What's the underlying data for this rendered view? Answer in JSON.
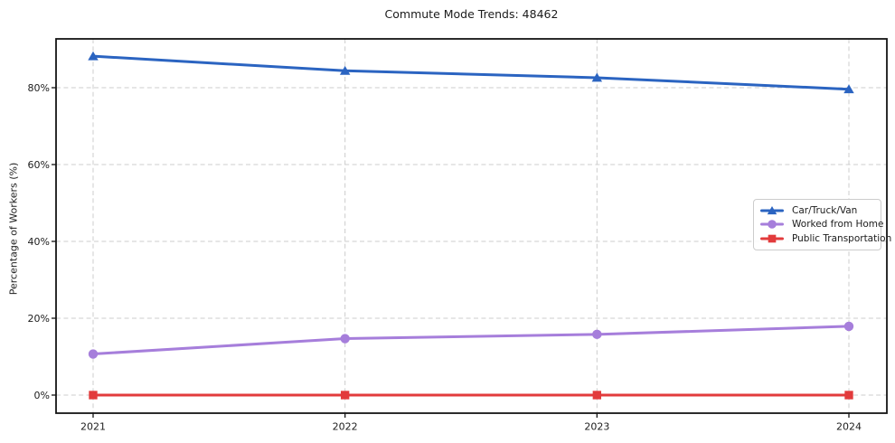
{
  "chart_data": {
    "type": "line",
    "title": "Commute Mode Trends: 48462",
    "xlabel": "",
    "ylabel": "Percentage of Workers (%)",
    "categories": [
      "2021",
      "2022",
      "2023",
      "2024"
    ],
    "series": [
      {
        "name": "Car/Truck/Van",
        "values": [
          88.2,
          84.4,
          82.6,
          79.6
        ],
        "color": "#2b64c1",
        "marker": "triangle"
      },
      {
        "name": "Worked from Home",
        "values": [
          10.7,
          14.7,
          15.8,
          17.9
        ],
        "color": "#a67edb",
        "marker": "circle"
      },
      {
        "name": "Public Transportation",
        "values": [
          0.0,
          0.0,
          0.0,
          0.0
        ],
        "color": "#e23b3c",
        "marker": "square"
      }
    ],
    "yticks": [
      0,
      20,
      40,
      60,
      80
    ],
    "ytick_labels": [
      "0%",
      "20%",
      "40%",
      "60%",
      "80%"
    ],
    "ylim": [
      -4.7,
      92.7
    ],
    "grid": true,
    "legend_position": "center-right",
    "frame_color": "#141414",
    "grid_color": "#cccccc",
    "text_color": "#1c1c1c"
  }
}
